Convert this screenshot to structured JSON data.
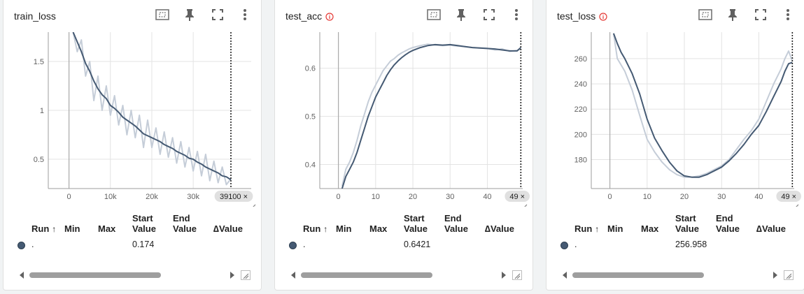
{
  "colors": {
    "smoothed": "#455a73",
    "raw": "#c5cdd8",
    "grid": "#e3e3e3",
    "axis": "#9e9e9e",
    "info": "#e53935"
  },
  "table": {
    "headers": {
      "run": "Run",
      "sort_arrow": "↑",
      "min": "Min",
      "max": "Max",
      "start_1": "Start",
      "start_2": "Value",
      "end_1": "End",
      "end_2": "Value",
      "delta": "∆Value"
    }
  },
  "chart_data": [
    {
      "type": "line",
      "title": "train_loss",
      "xlim": [
        -5000,
        44000
      ],
      "ylim": [
        0.2,
        1.8
      ],
      "x_ticks": [
        0,
        10000,
        20000,
        30000
      ],
      "x_tick_labels": [
        "0",
        "10k",
        "20k",
        "30k"
      ],
      "y_ticks": [
        0.5,
        1,
        1.5
      ],
      "y_tick_labels": [
        "0.5",
        "1",
        "1.5"
      ],
      "grid": true,
      "cursor": {
        "x": 39100,
        "label": "39100"
      },
      "series": [
        {
          "role": "smoothed",
          "x": [
            1000,
            2000,
            3000,
            4000,
            5000,
            6000,
            7000,
            8000,
            9000,
            10000,
            11000,
            12000,
            13000,
            14000,
            15000,
            16000,
            17000,
            18000,
            19000,
            20000,
            21000,
            22000,
            23000,
            24000,
            25000,
            26000,
            27000,
            28000,
            29000,
            30000,
            31000,
            32000,
            33000,
            34000,
            35000,
            36000,
            37000,
            38000,
            39100
          ],
          "y": [
            1.8,
            1.7,
            1.6,
            1.48,
            1.4,
            1.3,
            1.22,
            1.16,
            1.12,
            1.05,
            1.02,
            0.98,
            0.93,
            0.9,
            0.87,
            0.84,
            0.8,
            0.76,
            0.74,
            0.72,
            0.7,
            0.68,
            0.65,
            0.63,
            0.61,
            0.58,
            0.56,
            0.54,
            0.51,
            0.5,
            0.47,
            0.45,
            0.42,
            0.4,
            0.38,
            0.36,
            0.33,
            0.32,
            0.29
          ]
        },
        {
          "role": "raw",
          "x": [
            1000,
            2000,
            3000,
            4000,
            5000,
            6000,
            7000,
            8000,
            9000,
            10000,
            11000,
            12000,
            13000,
            14000,
            15000,
            16000,
            17000,
            18000,
            19000,
            20000,
            21000,
            22000,
            23000,
            24000,
            25000,
            26000,
            27000,
            28000,
            29000,
            30000,
            31000,
            32000,
            33000,
            34000,
            35000,
            36000,
            37000,
            38000,
            39100
          ],
          "y": [
            1.8,
            1.6,
            1.72,
            1.35,
            1.5,
            1.1,
            1.35,
            1.0,
            1.25,
            0.95,
            1.15,
            0.85,
            1.05,
            0.75,
            1.0,
            0.72,
            0.95,
            0.62,
            0.9,
            0.62,
            0.82,
            0.55,
            0.78,
            0.52,
            0.72,
            0.46,
            0.68,
            0.42,
            0.62,
            0.38,
            0.58,
            0.33,
            0.55,
            0.28,
            0.48,
            0.26,
            0.42,
            0.24,
            0.3
          ]
        }
      ],
      "row": {
        "start_value": "0.174"
      }
    },
    {
      "type": "line",
      "title": "test_acc",
      "xlim": [
        -5,
        49.5
      ],
      "ylim": [
        0.35,
        0.675
      ],
      "x_ticks": [
        0,
        10,
        20,
        30,
        40
      ],
      "x_tick_labels": [
        "0",
        "10",
        "20",
        "30",
        "40"
      ],
      "y_ticks": [
        0.4,
        0.5,
        0.6
      ],
      "y_tick_labels": [
        "0.4",
        "0.5",
        "0.6"
      ],
      "grid": true,
      "cursor": {
        "x": 49,
        "label": "49"
      },
      "series": [
        {
          "role": "raw",
          "x": [
            1,
            2,
            3,
            4,
            5,
            6,
            7,
            8,
            9,
            10,
            11,
            12,
            13,
            14,
            15,
            16,
            17,
            18,
            19,
            20,
            22,
            24,
            26,
            28,
            30,
            32,
            34,
            36,
            38,
            40,
            42,
            44,
            46,
            48,
            49
          ],
          "y": [
            0.355,
            0.39,
            0.405,
            0.425,
            0.45,
            0.48,
            0.505,
            0.53,
            0.55,
            0.565,
            0.58,
            0.595,
            0.605,
            0.615,
            0.62,
            0.627,
            0.632,
            0.636,
            0.64,
            0.643,
            0.647,
            0.65,
            0.648,
            0.647,
            0.648,
            0.646,
            0.645,
            0.643,
            0.642,
            0.641,
            0.638,
            0.64,
            0.635,
            0.637,
            0.64
          ]
        },
        {
          "role": "smoothed",
          "x": [
            1,
            2,
            3,
            4,
            5,
            6,
            7,
            8,
            9,
            10,
            11,
            12,
            13,
            14,
            15,
            16,
            17,
            18,
            19,
            20,
            22,
            24,
            26,
            28,
            30,
            32,
            34,
            36,
            38,
            40,
            42,
            44,
            46,
            48,
            49
          ],
          "y": [
            0.35,
            0.375,
            0.39,
            0.405,
            0.425,
            0.45,
            0.475,
            0.5,
            0.52,
            0.54,
            0.555,
            0.57,
            0.585,
            0.597,
            0.607,
            0.615,
            0.622,
            0.628,
            0.633,
            0.637,
            0.643,
            0.647,
            0.649,
            0.648,
            0.649,
            0.647,
            0.645,
            0.643,
            0.642,
            0.641,
            0.64,
            0.638,
            0.636,
            0.636,
            0.643
          ]
        }
      ],
      "row": {
        "start_value": "0.6421"
      }
    },
    {
      "type": "line",
      "title": "test_loss",
      "xlim": [
        -5,
        49.5
      ],
      "ylim": [
        157,
        281
      ],
      "x_ticks": [
        0,
        10,
        20,
        30,
        40
      ],
      "x_tick_labels": [
        "0",
        "10",
        "20",
        "30",
        "40"
      ],
      "y_ticks": [
        180,
        200,
        220,
        240,
        260
      ],
      "y_tick_labels": [
        "180",
        "200",
        "220",
        "240",
        "260"
      ],
      "grid": true,
      "cursor": {
        "x": 49,
        "label": "49"
      },
      "series": [
        {
          "role": "raw",
          "x": [
            1,
            2,
            3,
            4,
            6,
            8,
            10,
            12,
            14,
            16,
            18,
            20,
            22,
            24,
            26,
            28,
            30,
            32,
            34,
            36,
            38,
            40,
            42,
            44,
            46,
            47,
            48,
            49
          ],
          "y": [
            280,
            260,
            255,
            250,
            235,
            215,
            196,
            186,
            178,
            172,
            168,
            166,
            166,
            167,
            169,
            172,
            175,
            180,
            188,
            196,
            203,
            212,
            226,
            240,
            252,
            260,
            266,
            258
          ]
        },
        {
          "role": "smoothed",
          "x": [
            1,
            2,
            3,
            4,
            6,
            8,
            10,
            12,
            14,
            16,
            18,
            20,
            22,
            24,
            26,
            28,
            30,
            32,
            34,
            36,
            38,
            40,
            42,
            44,
            46,
            47,
            48,
            49
          ],
          "y": [
            280,
            272,
            265,
            260,
            248,
            232,
            212,
            197,
            187,
            178,
            171,
            167,
            166,
            166,
            168,
            171,
            174,
            179,
            185,
            192,
            200,
            207,
            218,
            230,
            242,
            250,
            256,
            257
          ]
        }
      ],
      "row": {
        "start_value": "256.958"
      }
    }
  ]
}
